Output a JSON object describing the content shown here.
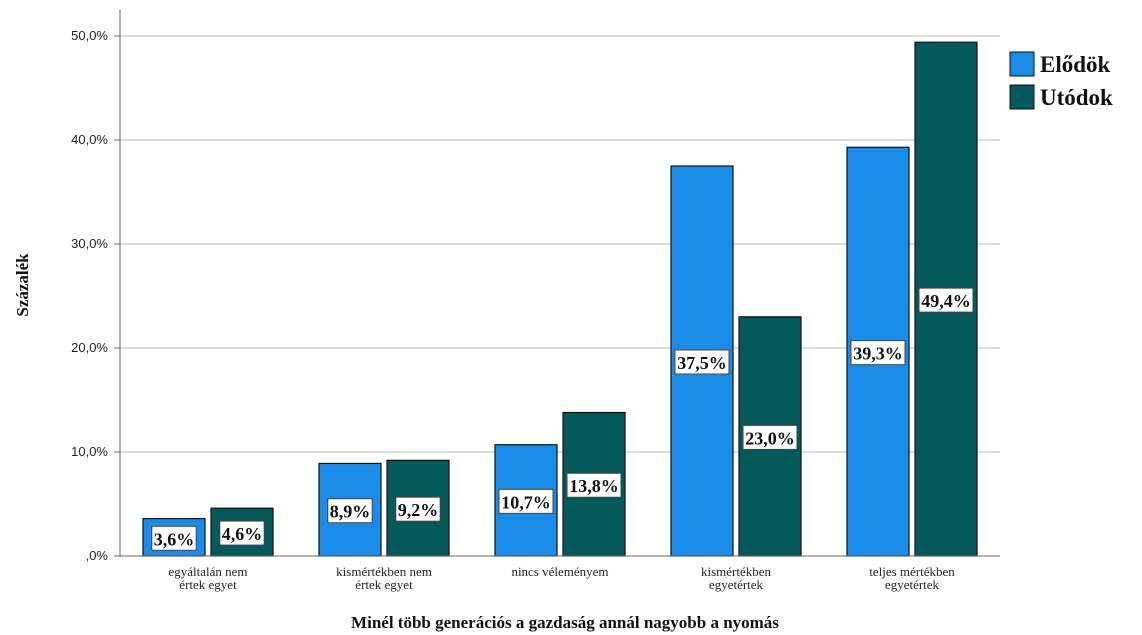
{
  "chart_data": {
    "type": "bar",
    "categories": [
      [
        "egyáltalán nem",
        "értek egyet"
      ],
      [
        "kismértékben nem",
        "értek egyet"
      ],
      [
        "nincs véleményem"
      ],
      [
        "kismértékben",
        "egyetértek"
      ],
      [
        "teljes mértékben",
        "egyetértek"
      ]
    ],
    "series": [
      {
        "name": "Elődök",
        "color": "#1a8ce8",
        "values": [
          3.6,
          8.9,
          10.7,
          37.5,
          39.3
        ],
        "labels": [
          "3,6%",
          "8,9%",
          "10,7%",
          "37,5%",
          "39,3%"
        ]
      },
      {
        "name": "Utódok",
        "color": "#04595a",
        "values": [
          4.6,
          9.2,
          13.8,
          23.0,
          49.4
        ],
        "labels": [
          "4,6%",
          "9,2%",
          "13,8%",
          "23,0%",
          "49,4%"
        ]
      }
    ],
    "xlabel": "Minél több generációs a gazdaság annál nagyobb a nyomás",
    "ylabel": "Százalék",
    "ylim": [
      0,
      50
    ],
    "yticks": [
      0,
      10,
      20,
      30,
      40,
      50
    ],
    "ytick_labels": [
      ",0%",
      "10,0%",
      "20,0%",
      "30,0%",
      "40,0%",
      "50,0%"
    ],
    "grid": true,
    "legend": "top-right"
  }
}
